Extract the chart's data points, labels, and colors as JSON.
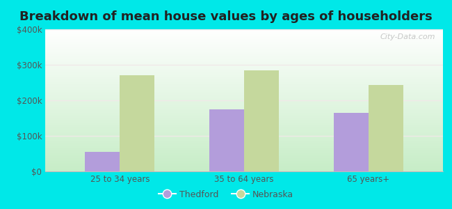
{
  "title": "Breakdown of mean house values by ages of householders",
  "categories": [
    "25 to 34 years",
    "35 to 64 years",
    "65 years+"
  ],
  "thedford_values": [
    55000,
    175000,
    165000
  ],
  "nebraska_values": [
    270000,
    285000,
    243000
  ],
  "thedford_color": "#b39ddb",
  "nebraska_color": "#c5d89d",
  "ylim": [
    0,
    400000
  ],
  "yticks": [
    0,
    100000,
    200000,
    300000,
    400000
  ],
  "ytick_labels": [
    "$0",
    "$100k",
    "$200k",
    "$300k",
    "$400k"
  ],
  "background_color": "#00e8e8",
  "legend_thedford": "Thedford",
  "legend_nebraska": "Nebraska",
  "title_fontsize": 13,
  "bar_width": 0.28,
  "watermark": "City-Data.com",
  "grid_color": "#e0e0e0",
  "label_color": "#555555",
  "title_color": "#222222"
}
